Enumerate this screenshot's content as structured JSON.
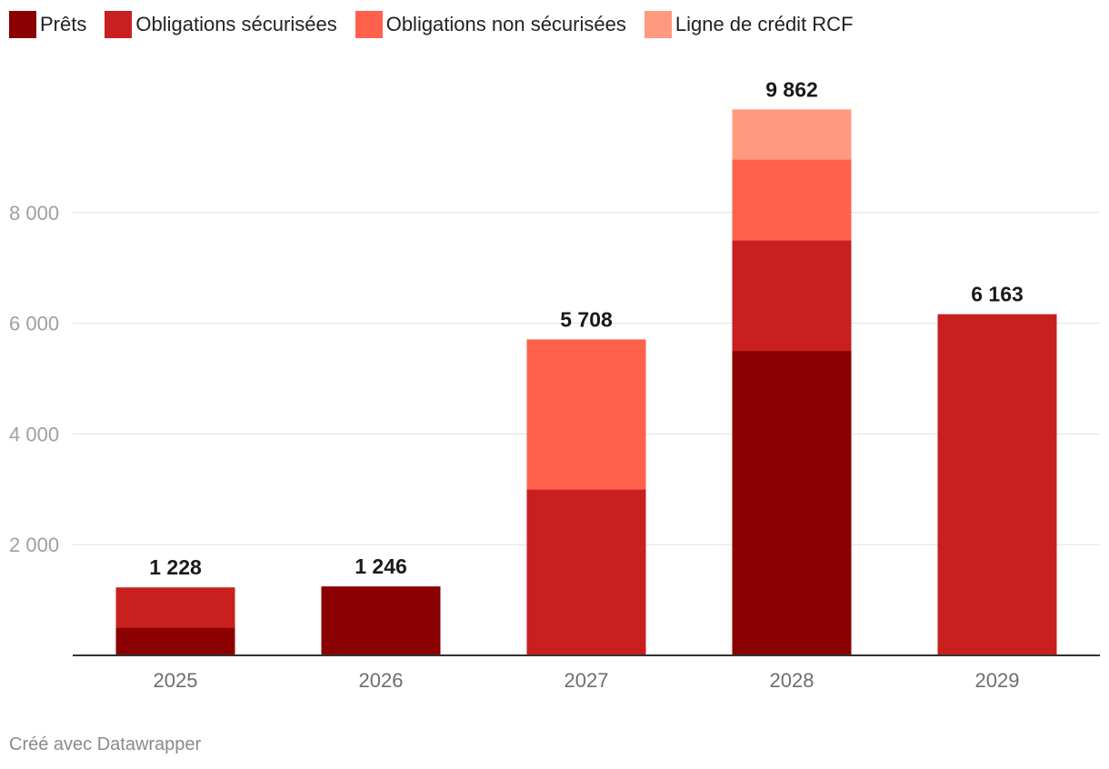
{
  "chart_data": {
    "type": "bar",
    "stacked": true,
    "categories": [
      "2025",
      "2026",
      "2027",
      "2028",
      "2029"
    ],
    "series": [
      {
        "name": "Prêts",
        "color": "#8b0000",
        "values": [
          500,
          1246,
          0,
          5500,
          0
        ]
      },
      {
        "name": "Obligations sécurisées",
        "color": "#c91f1f",
        "values": [
          728,
          0,
          3000,
          2000,
          6163
        ]
      },
      {
        "name": "Obligations non sécurisées",
        "color": "#ff614d",
        "values": [
          0,
          0,
          2708,
          1460,
          0
        ]
      },
      {
        "name": "Ligne de crédit RCF",
        "color": "#ff9a80",
        "values": [
          0,
          0,
          0,
          902,
          0
        ]
      }
    ],
    "totals": [
      "1 228",
      "1 246",
      "5 708",
      "9 862",
      "6 163"
    ],
    "y_ticks": [
      2000,
      4000,
      6000,
      8000
    ],
    "y_tick_labels": [
      "2 000",
      "4 000",
      "6 000",
      "8 000"
    ],
    "ylim": [
      0,
      10000
    ],
    "grid": true,
    "legend_position": "top-left"
  },
  "footer": {
    "credit": "Créé avec Datawrapper"
  }
}
